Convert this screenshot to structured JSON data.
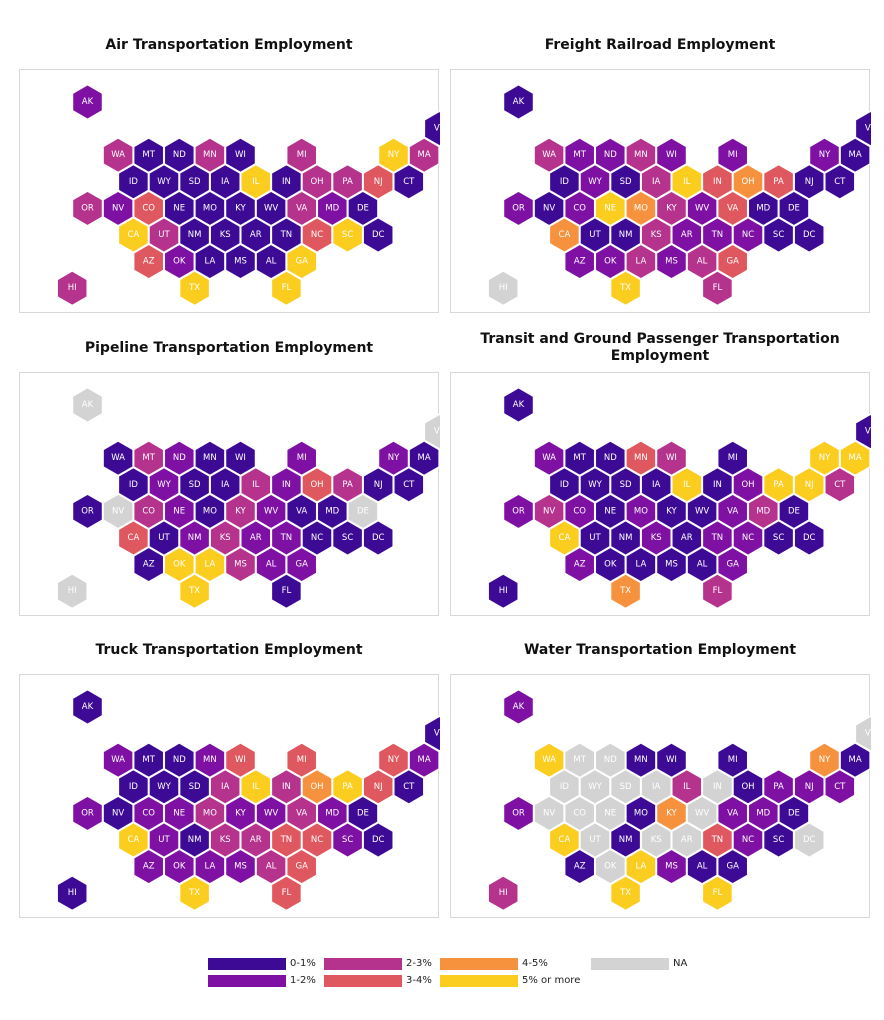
{
  "colors": {
    "c1": "#3d0a96",
    "c2": "#7e11a4",
    "c3": "#b5328d",
    "c4": "#e0585f",
    "c5": "#f6923d",
    "c6": "#fbcd1f",
    "na": "#d3d3d3"
  },
  "legend": [
    {
      "code": "c1",
      "label": "0-1%"
    },
    {
      "code": "c2",
      "label": "1-2%"
    },
    {
      "code": "c3",
      "label": "2-3%"
    },
    {
      "code": "c4",
      "label": "3-4%"
    },
    {
      "code": "c5",
      "label": "4-5%"
    },
    {
      "code": "c6",
      "label": "5% or more"
    },
    {
      "code": "na",
      "label": "NA"
    }
  ],
  "maps": [
    {
      "title": "Air Transportation Employment",
      "states": {
        "AK": "c2",
        "ME": "c1",
        "VT": "c1",
        "NH": "c1",
        "WA": "c3",
        "MT": "c1",
        "ND": "c1",
        "MN": "c3",
        "WI": "c1",
        "MI": "c3",
        "NY": "c6",
        "MA": "c3",
        "RI": "c1",
        "ID": "c1",
        "WY": "c1",
        "SD": "c1",
        "IA": "c1",
        "IL": "c6",
        "IN": "c1",
        "OH": "c3",
        "PA": "c3",
        "NJ": "c4",
        "CT": "c1",
        "OR": "c3",
        "NV": "c2",
        "CO": "c4",
        "NE": "c1",
        "MO": "c1",
        "KY": "c1",
        "WV": "c1",
        "VA": "c3",
        "MD": "c2",
        "DE": "c1",
        "CA": "c6",
        "UT": "c3",
        "NM": "c1",
        "KS": "c1",
        "AR": "c1",
        "TN": "c1",
        "NC": "c4",
        "SC": "c6",
        "DC": "c1",
        "AZ": "c4",
        "OK": "c2",
        "LA": "c1",
        "MS": "c1",
        "AL": "c1",
        "GA": "c6",
        "HI": "c3",
        "TX": "c6",
        "FL": "c6"
      }
    },
    {
      "title": "Freight Railroad Employment",
      "states": {
        "AK": "c1",
        "ME": "c1",
        "VT": "c1",
        "NH": "c1",
        "WA": "c3",
        "MT": "c2",
        "ND": "c2",
        "MN": "c3",
        "WI": "c2",
        "MI": "c2",
        "NY": "c2",
        "MA": "c1",
        "RI": "c1",
        "ID": "c1",
        "WY": "c2",
        "SD": "c1",
        "IA": "c3",
        "IL": "c6",
        "IN": "c4",
        "OH": "c5",
        "PA": "c4",
        "NJ": "c1",
        "CT": "c1",
        "OR": "c2",
        "NV": "c1",
        "CO": "c2",
        "NE": "c6",
        "MO": "c5",
        "KY": "c3",
        "WV": "c2",
        "VA": "c4",
        "MD": "c1",
        "DE": "c1",
        "CA": "c5",
        "UT": "c1",
        "NM": "c1",
        "KS": "c3",
        "AR": "c2",
        "TN": "c2",
        "NC": "c2",
        "SC": "c1",
        "DC": "c1",
        "AZ": "c2",
        "OK": "c2",
        "LA": "c3",
        "MS": "c2",
        "AL": "c3",
        "GA": "c4",
        "HI": "na",
        "TX": "c6",
        "FL": "c3"
      }
    },
    {
      "title": "Pipeline Transportation Employment",
      "states": {
        "AK": "na",
        "ME": "c1",
        "VT": "na",
        "NH": "c1",
        "WA": "c1",
        "MT": "c3",
        "ND": "c2",
        "MN": "c1",
        "WI": "c1",
        "MI": "c2",
        "NY": "c2",
        "MA": "c1",
        "RI": "na",
        "ID": "c1",
        "WY": "c2",
        "SD": "c1",
        "IA": "c1",
        "IL": "c3",
        "IN": "c2",
        "OH": "c4",
        "PA": "c3",
        "NJ": "c1",
        "CT": "c1",
        "OR": "c1",
        "NV": "na",
        "CO": "c3",
        "NE": "c2",
        "MO": "c1",
        "KY": "c3",
        "WV": "c2",
        "VA": "c1",
        "MD": "c1",
        "DE": "na",
        "CA": "c4",
        "UT": "c1",
        "NM": "c2",
        "KS": "c3",
        "AR": "c2",
        "TN": "c2",
        "NC": "c1",
        "SC": "c1",
        "DC": "c1",
        "AZ": "c1",
        "OK": "c6",
        "LA": "c6",
        "MS": "c3",
        "AL": "c2",
        "GA": "c2",
        "HI": "na",
        "TX": "c6",
        "FL": "c1"
      }
    },
    {
      "title": "Transit and Ground Passenger Transportation Employment",
      "states": {
        "AK": "c1",
        "ME": "c1",
        "VT": "c1",
        "NH": "c1",
        "WA": "c2",
        "MT": "c1",
        "ND": "c1",
        "MN": "c4",
        "WI": "c3",
        "MI": "c1",
        "NY": "c6",
        "MA": "c6",
        "RI": "c1",
        "ID": "c1",
        "WY": "c1",
        "SD": "c1",
        "IA": "c1",
        "IL": "c6",
        "IN": "c1",
        "OH": "c2",
        "PA": "c6",
        "NJ": "c6",
        "CT": "c3",
        "OR": "c2",
        "NV": "c3",
        "CO": "c2",
        "NE": "c1",
        "MO": "c2",
        "KY": "c1",
        "WV": "c1",
        "VA": "c2",
        "MD": "c3",
        "DE": "c1",
        "CA": "c6",
        "UT": "c1",
        "NM": "c1",
        "KS": "c2",
        "AR": "c1",
        "TN": "c2",
        "NC": "c2",
        "SC": "c1",
        "DC": "c1",
        "AZ": "c2",
        "OK": "c1",
        "LA": "c1",
        "MS": "c1",
        "AL": "c1",
        "GA": "c2",
        "HI": "c1",
        "TX": "c5",
        "FL": "c3"
      }
    },
    {
      "title": "Truck Transportation Employment",
      "states": {
        "AK": "c1",
        "ME": "c1",
        "VT": "c1",
        "NH": "c1",
        "WA": "c2",
        "MT": "c1",
        "ND": "c1",
        "MN": "c2",
        "WI": "c4",
        "MI": "c4",
        "NY": "c4",
        "MA": "c2",
        "RI": "c1",
        "ID": "c1",
        "WY": "c1",
        "SD": "c1",
        "IA": "c3",
        "IL": "c6",
        "IN": "c3",
        "OH": "c5",
        "PA": "c6",
        "NJ": "c4",
        "CT": "c1",
        "OR": "c2",
        "NV": "c1",
        "CO": "c2",
        "NE": "c2",
        "MO": "c3",
        "KY": "c2",
        "WV": "c2",
        "VA": "c3",
        "MD": "c2",
        "DE": "c1",
        "CA": "c6",
        "UT": "c2",
        "NM": "c1",
        "KS": "c3",
        "AR": "c3",
        "TN": "c4",
        "NC": "c4",
        "SC": "c2",
        "DC": "c1",
        "AZ": "c2",
        "OK": "c2",
        "LA": "c2",
        "MS": "c2",
        "AL": "c3",
        "GA": "c4",
        "HI": "c1",
        "TX": "c6",
        "FL": "c4"
      }
    },
    {
      "title": "Water Transportation Employment",
      "states": {
        "AK": "c2",
        "ME": "c1",
        "VT": "na",
        "NH": "na",
        "WA": "c6",
        "MT": "na",
        "ND": "na",
        "MN": "c1",
        "WI": "c1",
        "MI": "c1",
        "NY": "c5",
        "MA": "c1",
        "RI": "c1",
        "ID": "na",
        "WY": "na",
        "SD": "na",
        "IA": "na",
        "IL": "c3",
        "IN": "na",
        "OH": "c1",
        "PA": "c2",
        "NJ": "c2",
        "CT": "c2",
        "OR": "c2",
        "NV": "na",
        "CO": "na",
        "NE": "na",
        "MO": "c1",
        "KY": "c5",
        "WV": "na",
        "VA": "c2",
        "MD": "c2",
        "DE": "c1",
        "CA": "c6",
        "UT": "na",
        "NM": "c1",
        "KS": "na",
        "AR": "na",
        "TN": "c4",
        "NC": "c2",
        "SC": "c1",
        "DC": "na",
        "AZ": "c1",
        "OK": "na",
        "LA": "c6",
        "MS": "c2",
        "AL": "c1",
        "GA": "c1",
        "HI": "c3",
        "TX": "c6",
        "FL": "c6"
      }
    }
  ]
}
